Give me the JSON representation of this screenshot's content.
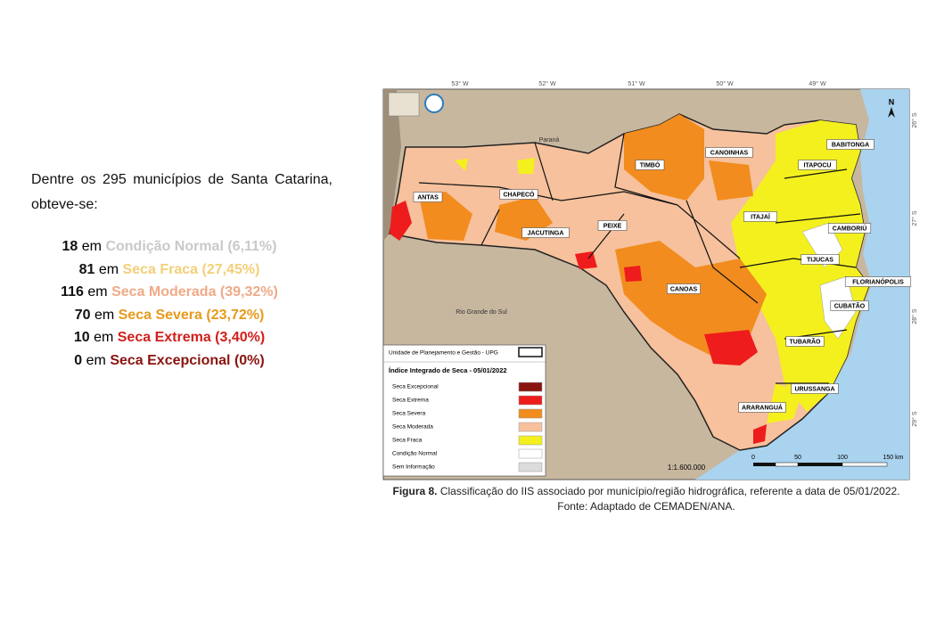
{
  "intro": "Dentre os 295 municípios de Santa Catarina, obteve-se:",
  "stats": [
    {
      "count": 18,
      "word": "em",
      "label": "Condição Normal (6,11%)",
      "color": "#c9c9c9"
    },
    {
      "count": 81,
      "word": "em",
      "label": "Seca Fraca (27,45%)",
      "color": "#f3cf78"
    },
    {
      "count": 116,
      "word": "em",
      "label": "Seca Moderada (39,32%)",
      "color": "#efaa88"
    },
    {
      "count": 70,
      "word": "em",
      "label": "Seca Severa (23,72%)",
      "color": "#e79a1c"
    },
    {
      "count": 10,
      "word": "em",
      "label": "Seca Extrema (3,40%)",
      "color": "#d0201c"
    },
    {
      "count": 0,
      "word": "em",
      "label": "Seca Excepcional (0%)",
      "color": "#8a1410"
    }
  ],
  "map": {
    "longitudes": [
      "53° W",
      "52° W",
      "51° W",
      "50° W",
      "49° W"
    ],
    "latitudes": [
      "26° S",
      "27° S",
      "28° S",
      "29° S"
    ],
    "north": "N",
    "places": [
      "Paraná",
      "Rio Grande do Sul"
    ],
    "regions": [
      "ANTAS",
      "CHAPECÓ",
      "JACUTINGA",
      "PEIXE",
      "TIMBÓ",
      "CANOINHAS",
      "ITAJAÍ",
      "ITAPOCU",
      "BABITONGA",
      "CAMBORIÚ",
      "TIJUCAS",
      "FLORIANÓPOLIS",
      "CUBATÃO",
      "TUBARÃO",
      "URUSSANGA",
      "ARARANGUÁ",
      "CANOAS"
    ],
    "legend": {
      "upg": "Unidade de Planejamento e Gestão - UPG",
      "title": "Índice Integrado de Seca - 05/01/2022",
      "items": [
        {
          "label": "Seca Excepcional",
          "color": "#8a1410"
        },
        {
          "label": "Seca Extrema",
          "color": "#ee1c1c"
        },
        {
          "label": "Seca Severa",
          "color": "#f28c1e"
        },
        {
          "label": "Seca Moderada",
          "color": "#f6c19c"
        },
        {
          "label": "Seca Fraca",
          "color": "#f4f01e"
        },
        {
          "label": "Condição Normal",
          "color": "#ffffff"
        },
        {
          "label": "Sem Informação",
          "color": "#dcdcdc"
        }
      ]
    },
    "scale": "1:1.600.000",
    "scale_ticks": [
      "0",
      "50",
      "100",
      "150 km"
    ]
  },
  "caption": {
    "figure": "Figura 8.",
    "text": " Classificação do IIS associado por município/região hidrográfica, referente a data de 05/01/2022.",
    "source": "Fonte: Adaptado de CEMADEN/ANA."
  }
}
